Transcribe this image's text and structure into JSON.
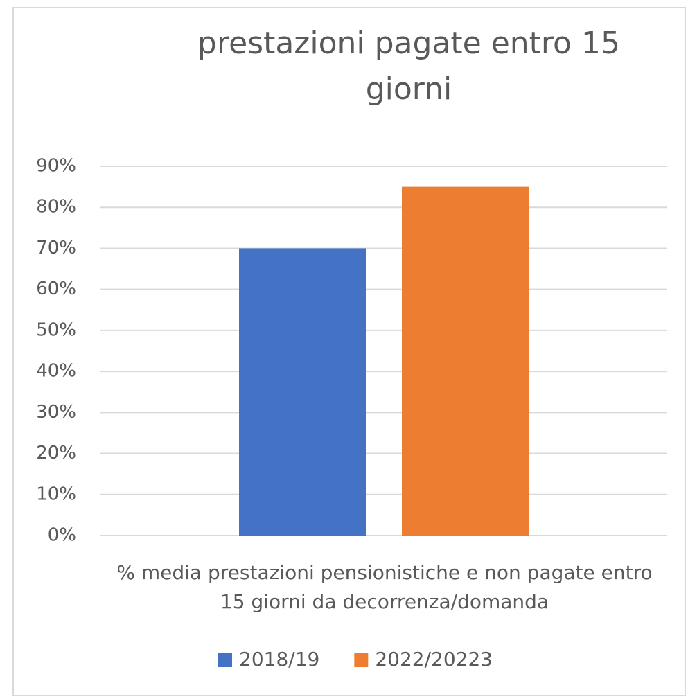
{
  "chart_data": {
    "type": "bar",
    "title": "prestazioni  pagate entro 15 giorni",
    "categories": [
      "% media prestazioni pensionistiche e non pagate entro 15 giorni da decorrenza/domanda"
    ],
    "series": [
      {
        "name": "2018/19",
        "color": "#4472c4",
        "values": [
          70
        ]
      },
      {
        "name": "2022/20223",
        "color": "#ed7d31",
        "values": [
          85
        ]
      }
    ],
    "ylim": [
      0,
      90
    ],
    "yticks": [
      {
        "value": 0,
        "label": "0%"
      },
      {
        "value": 10,
        "label": "10%"
      },
      {
        "value": 20,
        "label": "20%"
      },
      {
        "value": 30,
        "label": "30%"
      },
      {
        "value": 40,
        "label": "40%"
      },
      {
        "value": 50,
        "label": "50%"
      },
      {
        "value": 60,
        "label": "60%"
      },
      {
        "value": 70,
        "label": "70%"
      },
      {
        "value": 80,
        "label": "80%"
      },
      {
        "value": 90,
        "label": "90%"
      }
    ],
    "grid": true,
    "legend": "bottom"
  }
}
